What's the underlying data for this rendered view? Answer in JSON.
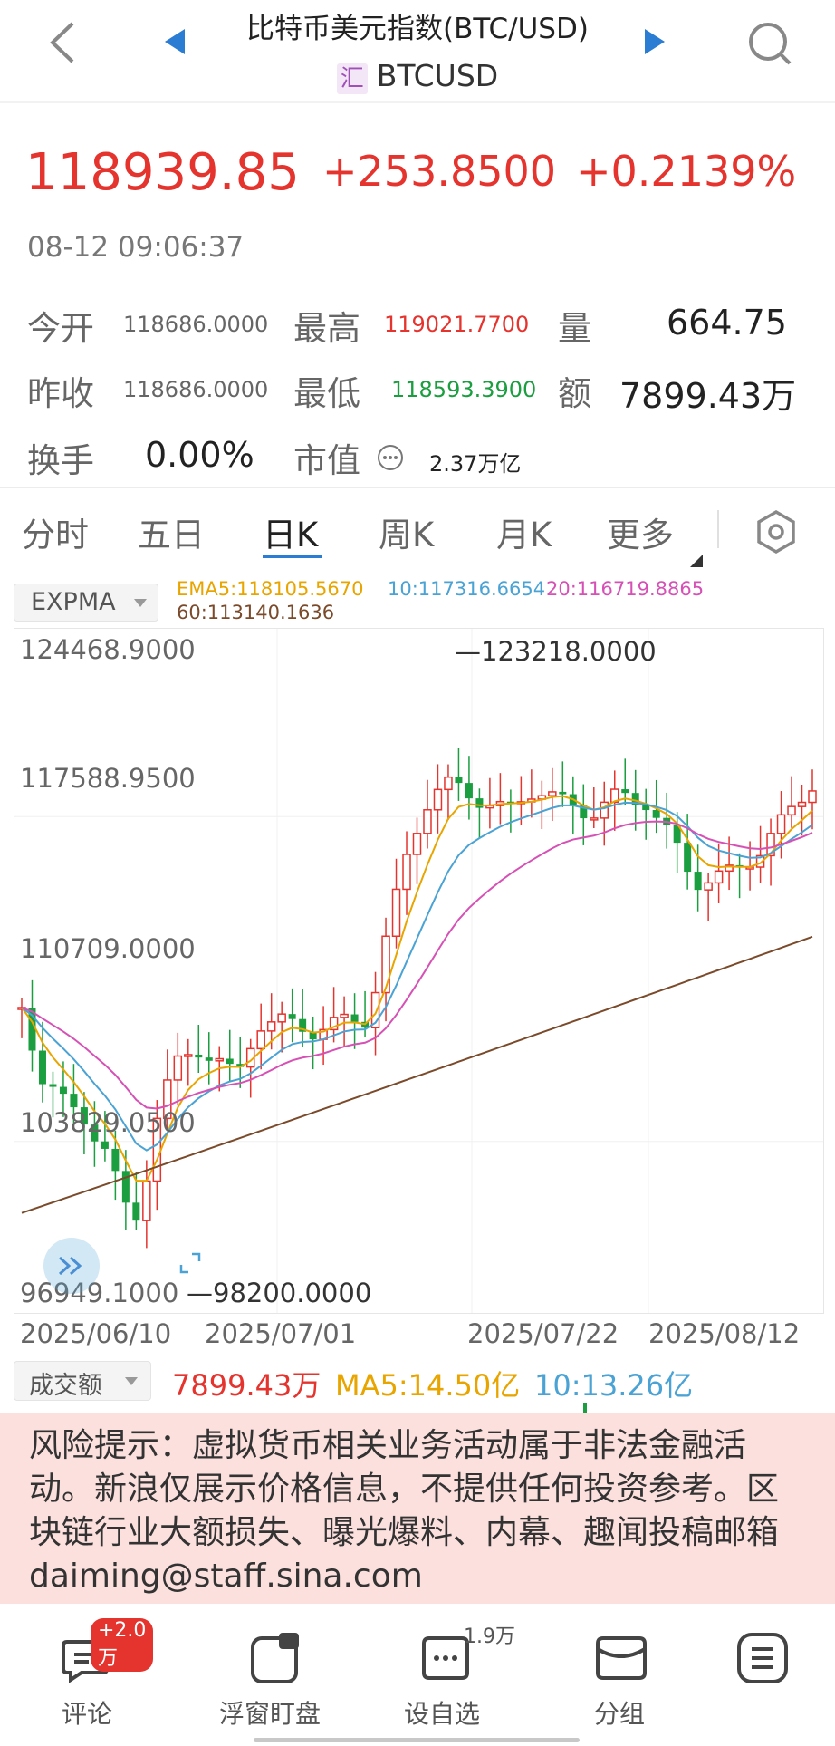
{
  "header": {
    "title": "比特币美元指数(BTC/USD)",
    "symbol_badge": "汇",
    "symbol": "BTCUSD"
  },
  "quote": {
    "price": "118939.85",
    "change": "+253.8500",
    "change_pct": "+0.2139%",
    "datetime": "08-12 09:06:37",
    "stats": {
      "open_label": "今开",
      "open": "118686.0000",
      "high_label": "最高",
      "high": "119021.7700",
      "vol_label": "量",
      "vol": "664.75",
      "prev_label": "昨收",
      "prev": "118686.0000",
      "low_label": "最低",
      "low": "118593.3900",
      "amt_label": "额",
      "amt": "7899.43万",
      "turnover_label": "换手",
      "turnover": "0.00%",
      "mcap_label": "市值",
      "mcap": "2.37万亿"
    },
    "colors": {
      "up": "#e5332e",
      "down": "#1a9e3f"
    }
  },
  "tabs": [
    "分时",
    "五日",
    "日K",
    "周K",
    "月K",
    "更多"
  ],
  "active_tab": "日K",
  "indicator": {
    "selector": "EXPMA",
    "ema5": "EMA5:118105.5670",
    "ema10": "10:117316.6654",
    "ema20": "20:116719.8865",
    "ema60": "60:113140.1636"
  },
  "chart_data": {
    "type": "candlestick",
    "y_ticks": [
      "124468.9000",
      "117588.9500",
      "110709.0000",
      "103829.0500",
      "96949.1000"
    ],
    "x_ticks": [
      "2025/06/10",
      "2025/07/01",
      "2025/07/22",
      "2025/08/12"
    ],
    "ylim": [
      96949.1,
      124468.9
    ],
    "max_label": "123218.0000",
    "min_label": "98200.0000",
    "series_colors": {
      "ema5": "#e8a500",
      "ema10": "#4aa3d4",
      "ema20": "#d651b5",
      "ema60": "#7a4a2a"
    }
  },
  "volume": {
    "selector": "成交额",
    "amount": "7899.43万",
    "ma5": "MA5:14.50亿",
    "ma10": "10:13.26亿"
  },
  "risk_notice": "风险提示：虚拟货币相关业务活动属于非法金融活动。新浪仅展示价格信息，不提供任何投资参考。区块链行业大额损失、曝光爆料、内幕、趣闻投稿邮箱 daiming@staff.sina.com",
  "bottom_bar": {
    "comment": "评论",
    "comment_badge": "+2.0万",
    "float": "浮窗盯盘",
    "watch": "设自选",
    "watch_count": "1.9万",
    "group": "分组"
  }
}
